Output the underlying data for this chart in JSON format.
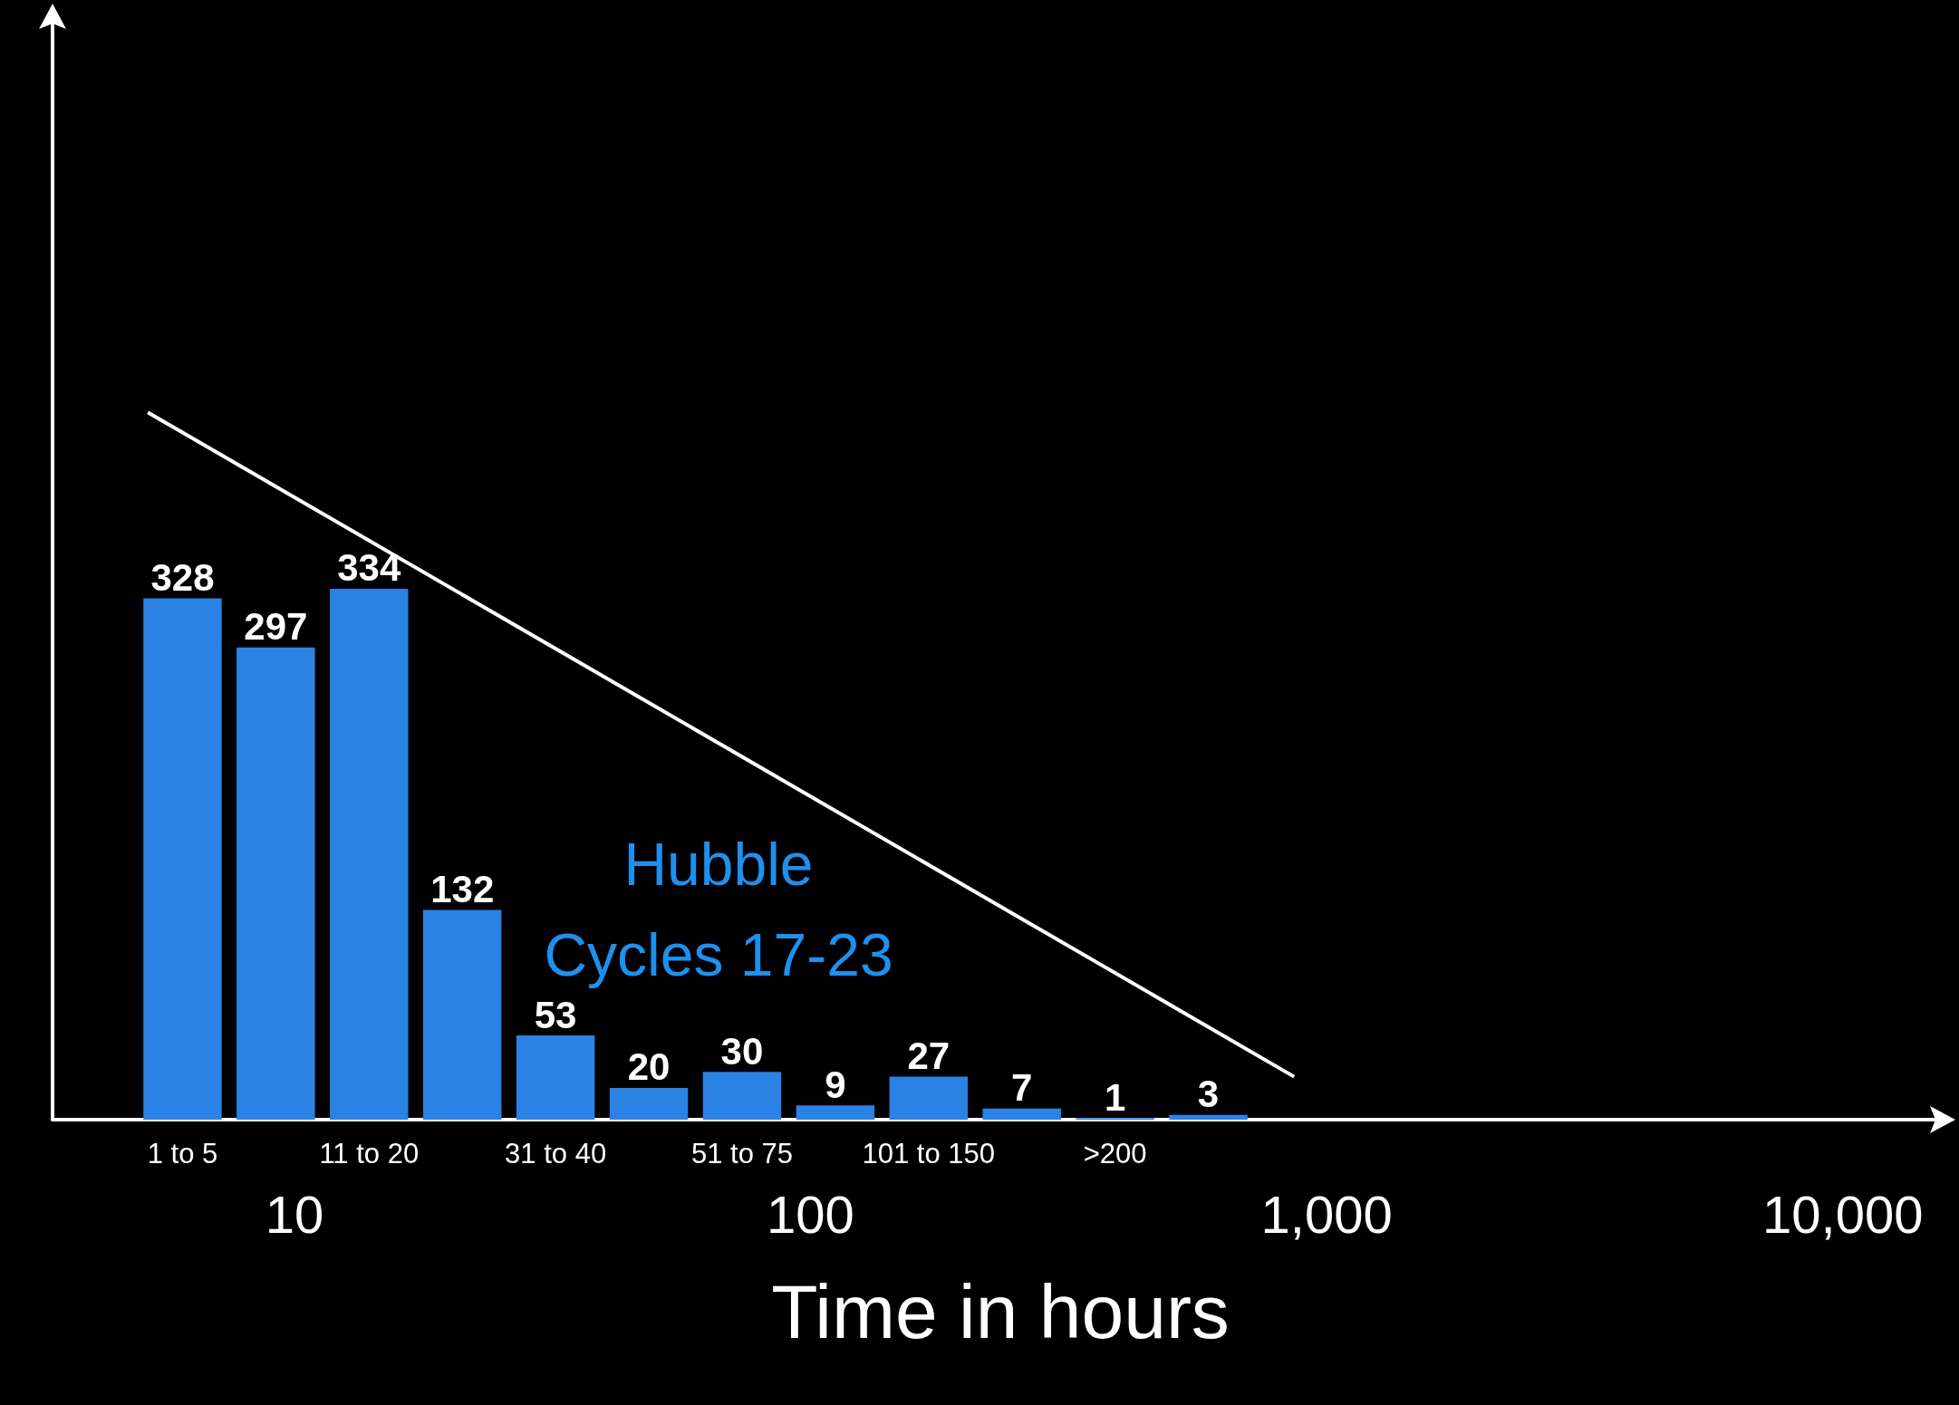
{
  "chart_data": {
    "type": "bar",
    "categories": [
      "1 to 5",
      null,
      "11 to 20",
      null,
      "31 to 40",
      null,
      "51 to 75",
      null,
      "101 to 150",
      null,
      ">200",
      null
    ],
    "series": [
      {
        "color": "#2a82e4",
        "values": [
          328,
          297,
          334,
          132,
          53,
          20,
          30,
          9,
          27,
          7,
          1,
          3
        ],
        "value_labels": [
          "328",
          "297",
          "334",
          "132",
          "53",
          "20",
          "30",
          "9",
          "27",
          "7",
          "1",
          "3"
        ]
      },
      {
        "type": "line",
        "axis": "x2",
        "color": "#ffffff",
        "marker": "none",
        "x": [
          5.2,
          865
        ],
        "values": [
          445,
          27
        ]
      }
    ],
    "x2lim": [
      3.4,
      16000
    ],
    "x2ticks": [
      10,
      100,
      {
        "value": 1000,
        "label": "1,000"
      },
      {
        "value": 10000,
        "label": "10,000"
      }
    ],
    "x2label": "Time in hours",
    "log": "x2",
    "tick_labels": "x",
    "grid": false,
    "annotations": [
      "Hubble",
      "Cycles 17-23"
    ]
  }
}
